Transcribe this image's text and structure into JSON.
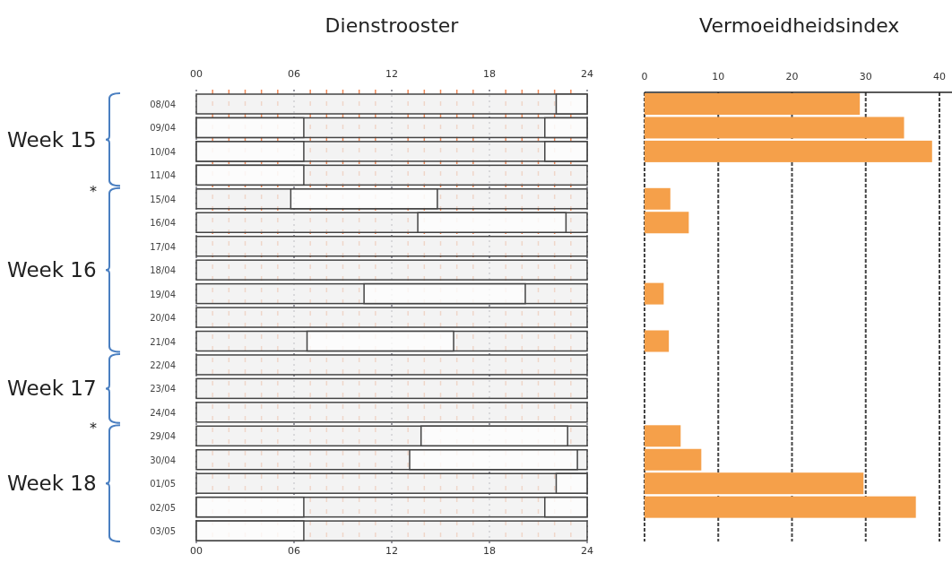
{
  "chart_data": [
    {
      "type": "bar",
      "title": "Dienstrooster",
      "orientation": "horizontal",
      "categories": [
        "08/04",
        "09/04",
        "10/04",
        "11/04",
        "15/04",
        "16/04",
        "17/04",
        "18/04",
        "19/04",
        "20/04",
        "21/04",
        "22/04",
        "23/04",
        "24/04",
        "29/04",
        "30/04",
        "01/05",
        "02/05",
        "03/05"
      ],
      "series": [
        {
          "color": "#efefef",
          "base": [
            0,
            0,
            0,
            0,
            0,
            0,
            0,
            0,
            0,
            0,
            0,
            0,
            0,
            0,
            0,
            0,
            0,
            0,
            0
          ],
          "values": [
            24,
            24,
            24,
            24,
            24,
            24,
            24,
            24,
            24,
            24,
            24,
            24,
            24,
            24,
            24,
            24,
            24,
            24,
            24
          ]
        },
        {
          "color": "#ffffff",
          "base": [
            22.1,
            0,
            0,
            0,
            5.8,
            13.6,
            null,
            null,
            10.3,
            null,
            6.8,
            null,
            null,
            null,
            13.8,
            13.1,
            22.1,
            0,
            0
          ],
          "values": [
            1.9,
            6.6,
            6.6,
            6.6,
            9,
            9.1,
            null,
            null,
            9.9,
            null,
            9,
            null,
            null,
            null,
            9,
            10.3,
            1.9,
            6.6,
            6.6
          ]
        },
        {
          "color": "#ffffff",
          "base": [
            null,
            21.4,
            21.4,
            null,
            null,
            null,
            null,
            null,
            null,
            null,
            null,
            null,
            null,
            null,
            null,
            null,
            null,
            21.4,
            null
          ],
          "values": [
            null,
            2.6,
            2.6,
            null,
            null,
            null,
            null,
            null,
            null,
            null,
            null,
            null,
            null,
            null,
            null,
            null,
            null,
            2.6,
            null
          ]
        }
      ],
      "xlim": [
        0,
        24
      ],
      "xticks": [
        {
          "value": 0,
          "label": "00"
        },
        {
          "value": 1,
          "label": null
        },
        {
          "value": 2,
          "label": null
        },
        {
          "value": 3,
          "label": null
        },
        {
          "value": 4,
          "label": null
        },
        {
          "value": 5,
          "label": null
        },
        {
          "value": 6,
          "label": "06"
        },
        {
          "value": 7,
          "label": null
        },
        {
          "value": 8,
          "label": null
        },
        {
          "value": 9,
          "label": null
        },
        {
          "value": 10,
          "label": null
        },
        {
          "value": 11,
          "label": null
        },
        {
          "value": 12,
          "label": "12"
        },
        {
          "value": 13,
          "label": null
        },
        {
          "value": 14,
          "label": null
        },
        {
          "value": 15,
          "label": null
        },
        {
          "value": 16,
          "label": null
        },
        {
          "value": 17,
          "label": null
        },
        {
          "value": 18,
          "label": "18"
        },
        {
          "value": 19,
          "label": null
        },
        {
          "value": 20,
          "label": null
        },
        {
          "value": 21,
          "label": null
        },
        {
          "value": 22,
          "label": null
        },
        {
          "value": 23,
          "label": null
        },
        {
          "value": 24,
          "label": "24"
        }
      ],
      "x2lim": [
        0,
        24
      ],
      "x2ticks": [
        {
          "value": 0,
          "label": "00"
        },
        {
          "value": 6,
          "label": "06"
        },
        {
          "value": 12,
          "label": "12"
        },
        {
          "value": 18,
          "label": "18"
        },
        {
          "value": 24,
          "label": "24"
        }
      ],
      "grid": "x",
      "annotations": [
        "Week 15",
        "*",
        "Week 16",
        "Week 17",
        "*",
        "Week 18"
      ]
    },
    {
      "type": "bar",
      "title": "Vermoeidheidsindex",
      "orientation": "horizontal",
      "categories": [
        null,
        null,
        null,
        null,
        null,
        null,
        null,
        null,
        null,
        null,
        null,
        null,
        null,
        null,
        null,
        null,
        null,
        null,
        null
      ],
      "values": [
        29.2,
        35.2,
        39.0,
        null,
        3.5,
        6.0,
        null,
        null,
        2.6,
        null,
        3.3,
        null,
        null,
        null,
        4.9,
        7.7,
        29.7,
        36.8,
        null
      ],
      "color": "#f5a04a",
      "xlim": [
        0,
        42
      ],
      "xticks": [
        0,
        10,
        20,
        30,
        40
      ],
      "grid": "x"
    }
  ]
}
